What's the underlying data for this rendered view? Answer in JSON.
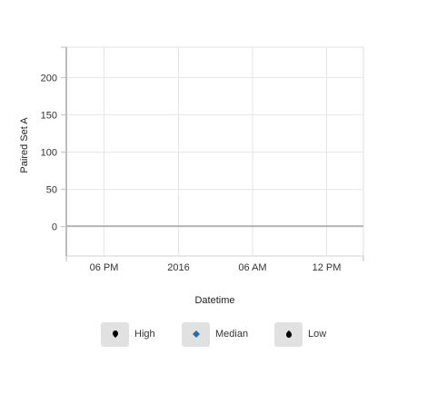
{
  "chart_data": {
    "type": "line",
    "title": "",
    "xlabel": "Datetime",
    "ylabel": "Paired Set A",
    "x_ticks": [
      "06 PM",
      "2016",
      "06 AM",
      "12 PM"
    ],
    "y_ticks": [
      0,
      50,
      100,
      150,
      200
    ],
    "ylim": [
      -40,
      240
    ],
    "grid": true,
    "legend_placement": "bottom",
    "series": [
      {
        "name": "High",
        "values": [],
        "marker": "drop",
        "color": "#000000"
      },
      {
        "name": "Median",
        "values": [],
        "marker": "diamond",
        "color": "#1f6fb5"
      },
      {
        "name": "Low",
        "values": [],
        "marker": "drop",
        "color": "#000000"
      }
    ]
  },
  "legend": {
    "items": [
      {
        "label": "High",
        "icon": "drop-marker-icon"
      },
      {
        "label": "Median",
        "icon": "diamond-marker-icon"
      },
      {
        "label": "Low",
        "icon": "drop-marker-icon"
      }
    ]
  }
}
